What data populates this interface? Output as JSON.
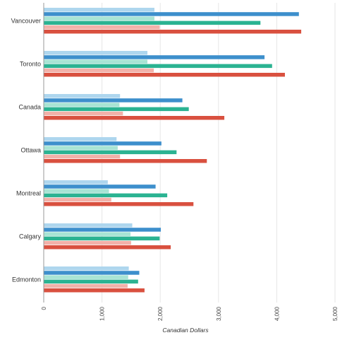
{
  "chart_data": {
    "type": "bar",
    "orientation": "horizontal",
    "title": "",
    "xlabel": "Canadian Dollars",
    "ylabel": "",
    "xlim": [
      0,
      5000
    ],
    "x_ticks": [
      0,
      1000,
      2000,
      3000,
      4000,
      5000
    ],
    "x_tick_labels": [
      "0",
      "1,000",
      "2,000",
      "3,000",
      "4,000",
      "5,000"
    ],
    "grid": true,
    "legend": "none",
    "categories": [
      "Vancouver",
      "Toronto",
      "Canada",
      "Ottawa",
      "Montreal",
      "Calgary",
      "Edmonton"
    ],
    "series": [
      {
        "color": "#aed6ee",
        "values": [
          1900,
          1780,
          1310,
          1250,
          1100,
          1520,
          1460
        ]
      },
      {
        "color": "#3d8fcc",
        "values": [
          4380,
          3790,
          2380,
          2020,
          1920,
          2010,
          1640
        ]
      },
      {
        "color": "#a8e4d4",
        "values": [
          1900,
          1780,
          1300,
          1270,
          1120,
          1490,
          1450
        ]
      },
      {
        "color": "#2bb392",
        "values": [
          3720,
          3920,
          2490,
          2280,
          2120,
          1990,
          1620
        ]
      },
      {
        "color": "#f2b1a9",
        "values": [
          1990,
          1890,
          1360,
          1310,
          1160,
          1500,
          1440
        ]
      },
      {
        "color": "#d9503f",
        "values": [
          4420,
          4140,
          3100,
          2800,
          2570,
          2180,
          1730
        ]
      }
    ]
  }
}
